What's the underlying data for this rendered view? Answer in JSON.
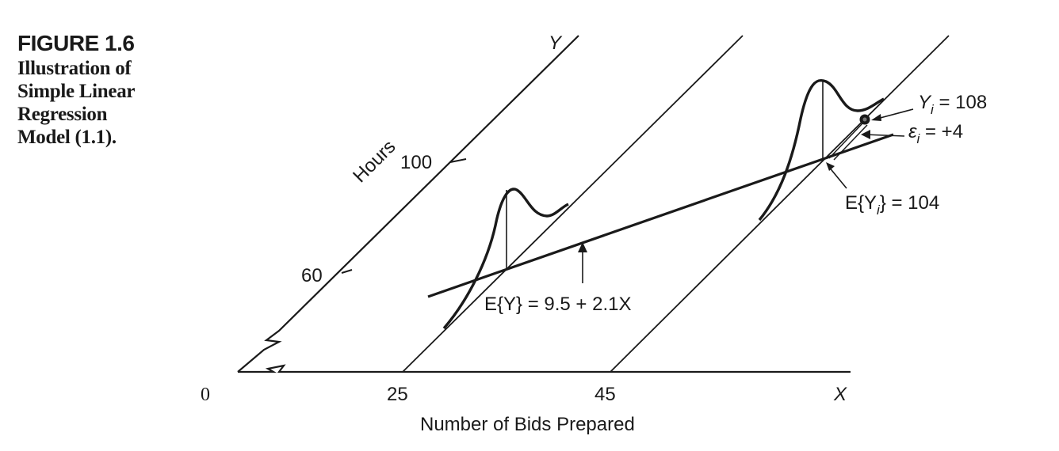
{
  "caption": {
    "figure_label": "FIGURE 1.6",
    "lines": [
      "Illustration of",
      "Simple Linear",
      "Regression",
      "Model (1.1)."
    ]
  },
  "axes": {
    "x_var": "X",
    "y_var": "Y",
    "x_title": "Number of Bids Prepared",
    "y_title": "Hours",
    "origin_label": "0",
    "x_ticks": [
      "25",
      "45"
    ],
    "y_ticks": [
      "60",
      "100"
    ]
  },
  "annotations": {
    "regression_eq": "E{Y} = 9.5 + 2.1X",
    "observed_y": "Y",
    "observed_y_sub": "i",
    "observed_y_val": " = 108",
    "error_term": "ε",
    "error_sub": "i",
    "error_val": " = +4",
    "expected_y_pre": "E{Y",
    "expected_y_sub": "i",
    "expected_y_post": "} = 104"
  },
  "colors": {
    "ink": "#1a1a1a",
    "background": "#ffffff"
  }
}
